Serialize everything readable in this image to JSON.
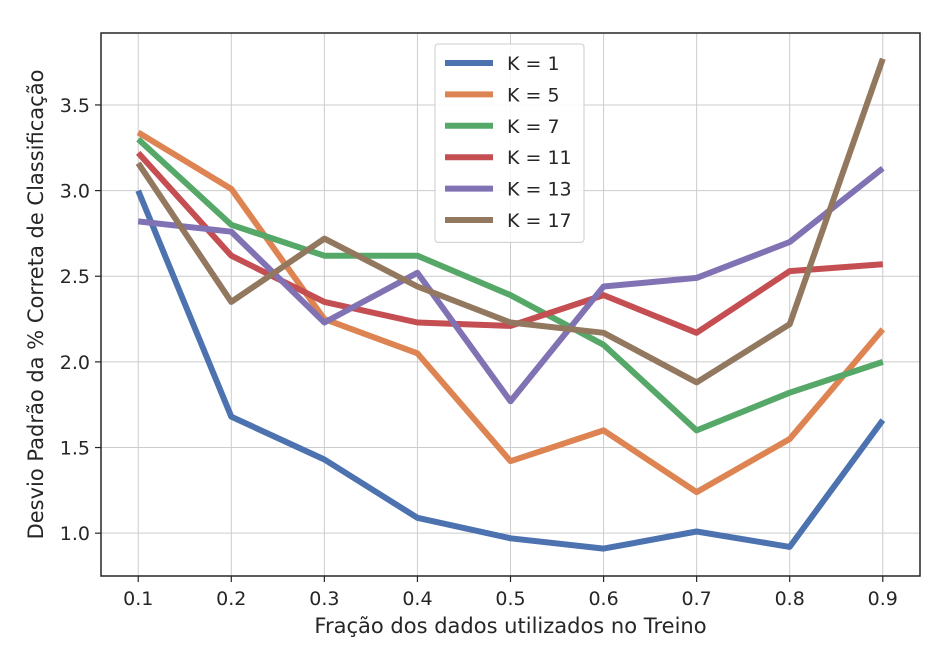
{
  "chart_data": {
    "type": "line",
    "title": "",
    "xlabel": "Fração dos dados utilizados no Treino",
    "ylabel": "Desvio Padrão da % Correta de Classificação",
    "x": [
      0.1,
      0.2,
      0.3,
      0.4,
      0.5,
      0.6,
      0.7,
      0.8,
      0.9
    ],
    "xticks": [
      "0.1",
      "0.2",
      "0.3",
      "0.4",
      "0.5",
      "0.6",
      "0.7",
      "0.8",
      "0.9"
    ],
    "yticks": [
      "1.0",
      "1.5",
      "2.0",
      "2.5",
      "3.0",
      "3.5"
    ],
    "xlim": [
      0.06,
      0.94
    ],
    "ylim": [
      0.75,
      3.92
    ],
    "grid": true,
    "legend_position": "top-center",
    "series": [
      {
        "name": "K = 1",
        "color": "#4c72b0",
        "values": [
          3.0,
          1.68,
          1.43,
          1.09,
          0.97,
          0.91,
          1.01,
          0.92,
          1.66
        ]
      },
      {
        "name": "K = 5",
        "color": "#dd8452",
        "values": [
          3.34,
          3.01,
          2.25,
          2.05,
          1.42,
          1.6,
          1.24,
          1.55,
          2.19
        ]
      },
      {
        "name": "K = 7",
        "color": "#55a868",
        "values": [
          3.3,
          2.8,
          2.62,
          2.62,
          2.39,
          2.1,
          1.6,
          1.82,
          2.0
        ]
      },
      {
        "name": "K = 11",
        "color": "#c44e52",
        "values": [
          3.22,
          2.62,
          2.35,
          2.23,
          2.21,
          2.39,
          2.17,
          2.53,
          2.57
        ]
      },
      {
        "name": "K = 13",
        "color": "#8172b3",
        "values": [
          2.82,
          2.76,
          2.23,
          2.52,
          1.77,
          2.44,
          2.49,
          2.7,
          3.13
        ]
      },
      {
        "name": "K = 17",
        "color": "#937860",
        "values": [
          3.16,
          2.35,
          2.72,
          2.44,
          2.23,
          2.17,
          1.88,
          2.22,
          3.77
        ]
      }
    ]
  }
}
